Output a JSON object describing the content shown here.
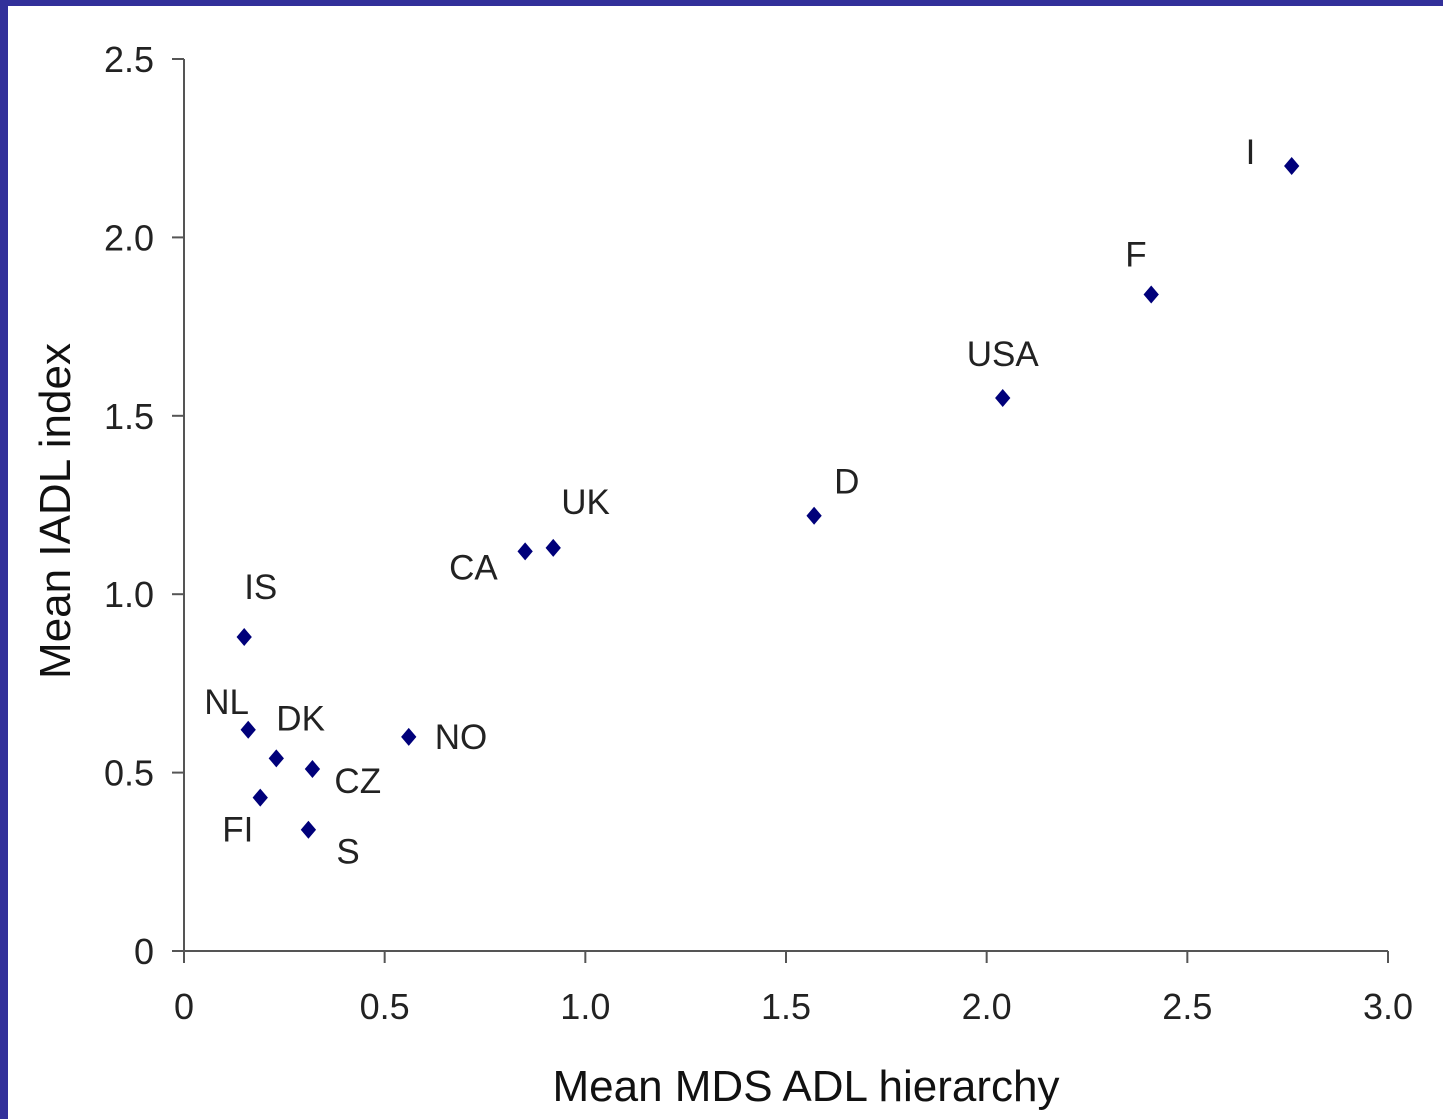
{
  "chart_data": {
    "type": "scatter",
    "xlabel": "Mean MDS ADL hierarchy",
    "ylabel": "Mean IADL index",
    "xlim": [
      0,
      3.0
    ],
    "ylim": [
      0,
      2.5
    ],
    "x_ticks": [
      "0",
      "0.5",
      "1.0",
      "1.5",
      "2.0",
      "2.5",
      "3.0"
    ],
    "y_ticks": [
      "0",
      "0.5",
      "1.0",
      "1.5",
      "2.0",
      "2.5"
    ],
    "grid": false,
    "marker": "diamond",
    "marker_color": "#00007a",
    "points": [
      {
        "label": "IS",
        "x": 0.15,
        "y": 0.88
      },
      {
        "label": "NL",
        "x": 0.16,
        "y": 0.62
      },
      {
        "label": "DK",
        "x": 0.23,
        "y": 0.54
      },
      {
        "label": "FI",
        "x": 0.19,
        "y": 0.43
      },
      {
        "label": "CZ",
        "x": 0.32,
        "y": 0.51
      },
      {
        "label": "S",
        "x": 0.31,
        "y": 0.34
      },
      {
        "label": "NO",
        "x": 0.56,
        "y": 0.6
      },
      {
        "label": "CA",
        "x": 0.85,
        "y": 1.12
      },
      {
        "label": "UK",
        "x": 0.92,
        "y": 1.13
      },
      {
        "label": "D",
        "x": 1.57,
        "y": 1.22
      },
      {
        "label": "USA",
        "x": 2.04,
        "y": 1.55
      },
      {
        "label": "F",
        "x": 2.41,
        "y": 1.84
      },
      {
        "label": "I",
        "x": 2.76,
        "y": 2.2
      }
    ]
  }
}
